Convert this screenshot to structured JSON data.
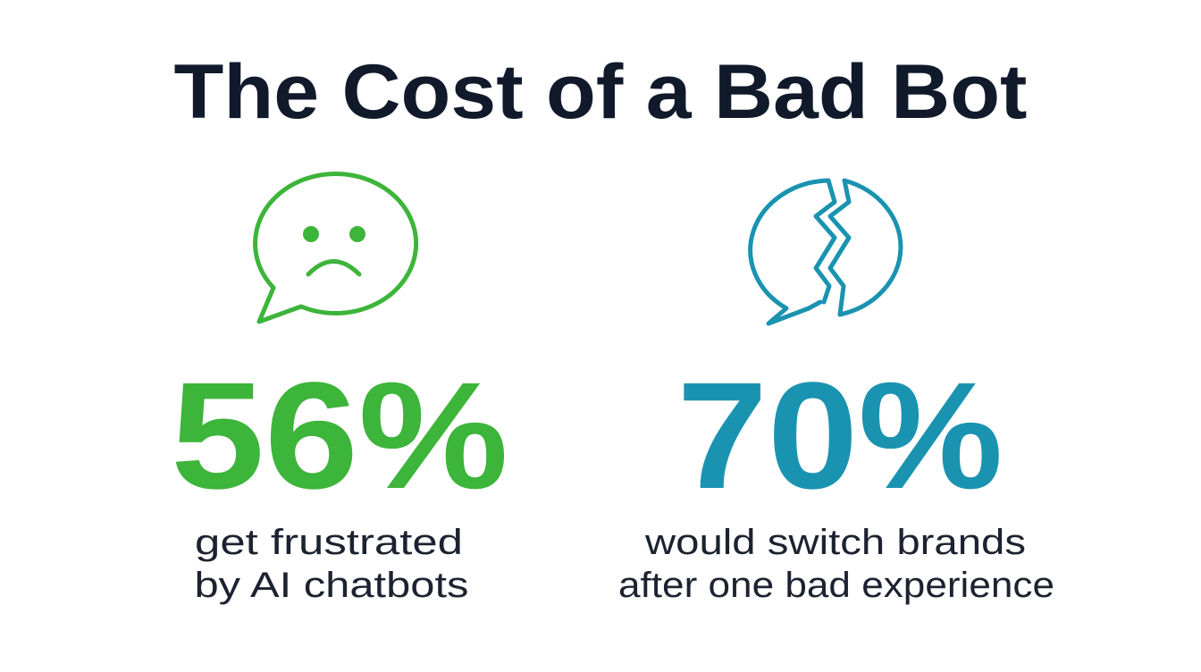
{
  "title": "The Cost of a Bad Bot",
  "stats": [
    {
      "figure": "56%",
      "caption": [
        "get frustrated",
        "by AI chatbots"
      ]
    },
    {
      "figure": "70%",
      "caption": [
        "would switch brands",
        "after one bad experience"
      ]
    }
  ]
}
